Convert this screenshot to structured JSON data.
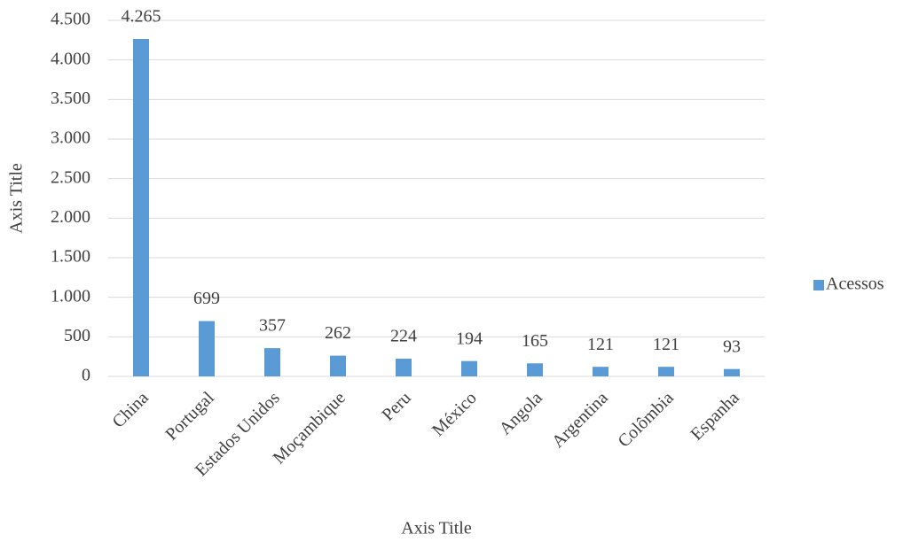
{
  "chart_data": {
    "type": "bar",
    "categories": [
      "China",
      "Portugal",
      "Estados Unidos",
      "Moçambique",
      "Peru",
      "México",
      "Angola",
      "Argentina",
      "Colômbia",
      "Espanha"
    ],
    "series": [
      {
        "name": "Acessos",
        "color": "#5b9bd5",
        "values": [
          4265,
          699,
          357,
          262,
          224,
          194,
          165,
          121,
          121,
          93
        ],
        "value_labels": [
          "4.265",
          "699",
          "357",
          "262",
          "224",
          "194",
          "165",
          "121",
          "121",
          "93"
        ]
      }
    ],
    "x_axis_label": "Axis Title",
    "y_axis_label": "Axis Title",
    "ylim": [
      0,
      4500
    ],
    "yticks": [
      0,
      500,
      {
        "value": 1000,
        "label": "1.000"
      },
      {
        "value": 1500,
        "label": "1.500"
      },
      {
        "value": 2000,
        "label": "2.000"
      },
      {
        "value": 2500,
        "label": "2.500"
      },
      {
        "value": 3000,
        "label": "3.000"
      },
      {
        "value": 3500,
        "label": "3.500"
      },
      {
        "value": 4000,
        "label": "4.000"
      },
      {
        "value": 4500,
        "label": "4.500"
      }
    ],
    "grid": true,
    "legend": "right"
  }
}
